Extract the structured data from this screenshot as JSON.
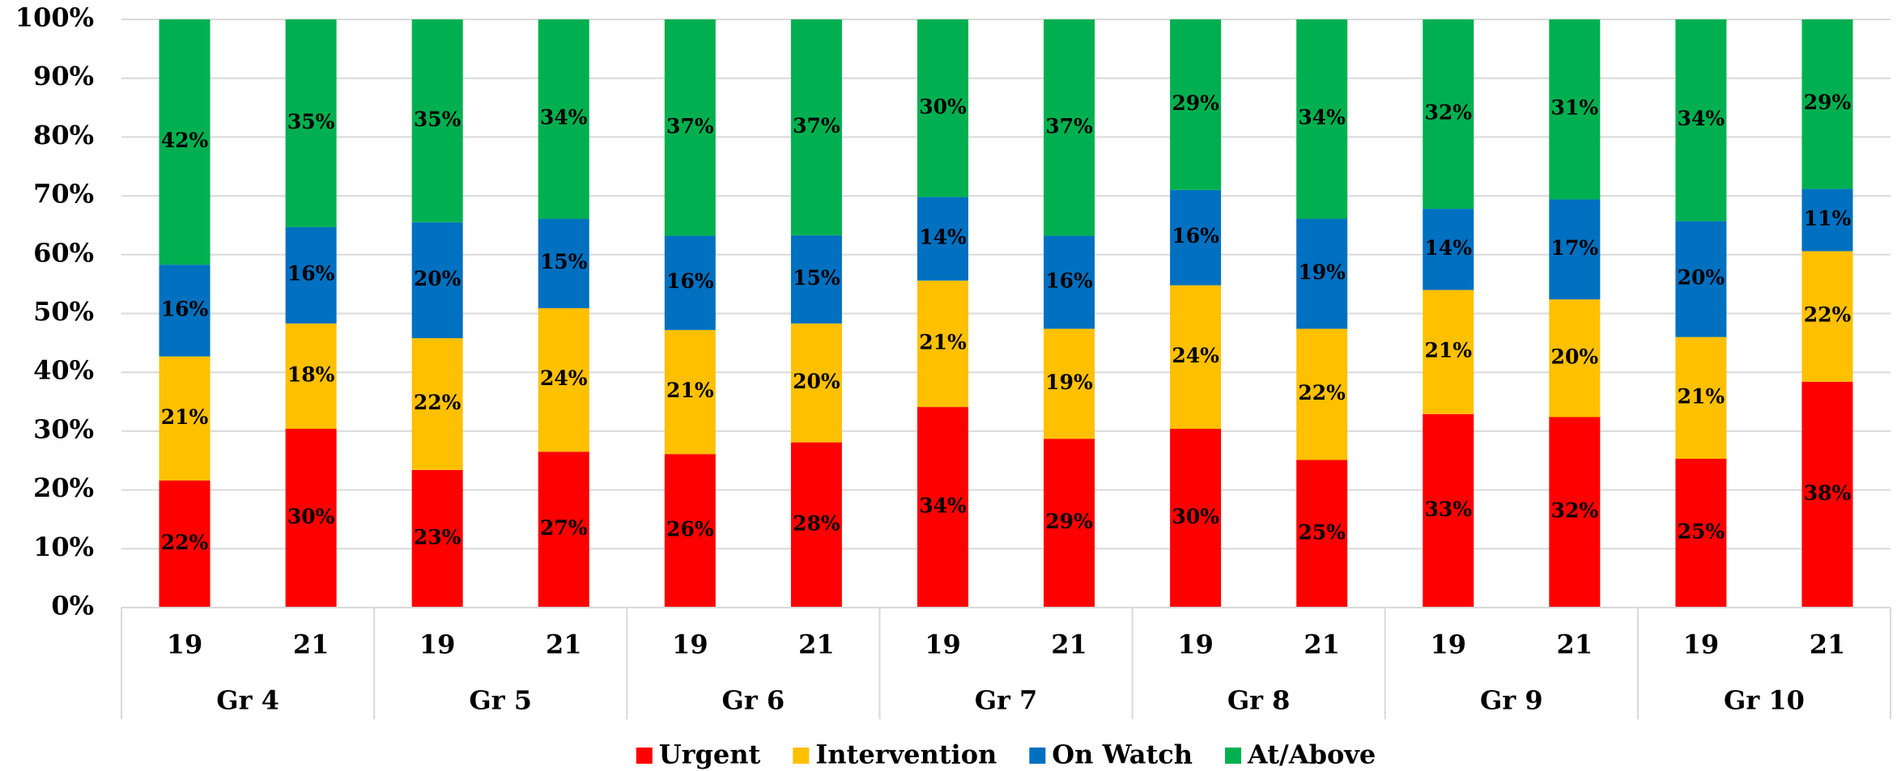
{
  "chart_data": {
    "type": "stacked_bar",
    "categories": [
      "19",
      "21",
      "19",
      "21",
      "19",
      "21",
      "19",
      "21",
      "19",
      "21",
      "19",
      "21",
      "19",
      "21"
    ],
    "groups": [
      "Gr 4",
      "Gr 5",
      "Gr 6",
      "Gr 7",
      "Gr 8",
      "Gr 9",
      "Gr 10"
    ],
    "series": [
      {
        "name": "Urgent",
        "color": "#ff0000",
        "values": [
          21.6,
          30.4,
          23.4,
          26.5,
          26.1,
          28.1,
          34.1,
          28.7,
          30.4,
          25.1,
          32.9,
          32.4,
          25.3,
          38.4
        ],
        "value_labels": [
          "22%",
          "30%",
          "23%",
          "27%",
          "26%",
          "28%",
          "34%",
          "29%",
          "30%",
          "25%",
          "33%",
          "32%",
          "25%",
          "38%"
        ]
      },
      {
        "name": "Intervention",
        "color": "#ffc000",
        "values": [
          21.1,
          17.9,
          22.4,
          24.4,
          21.1,
          20.2,
          21.5,
          18.7,
          24.4,
          22.3,
          21.1,
          20.0,
          20.7,
          22.2
        ],
        "value_labels": [
          "21%",
          "18%",
          "22%",
          "24%",
          "21%",
          "20%",
          "21%",
          "19%",
          "24%",
          "22%",
          "21%",
          "20%",
          "21%",
          "22%"
        ]
      },
      {
        "name": "On Watch",
        "color": "#0070c0",
        "values": [
          15.6,
          16.4,
          19.7,
          15.2,
          16.0,
          15.0,
          14.2,
          15.8,
          16.2,
          18.7,
          13.8,
          17.0,
          19.7,
          10.6
        ],
        "value_labels": [
          "16%",
          "16%",
          "20%",
          "15%",
          "16%",
          "15%",
          "14%",
          "16%",
          "16%",
          "19%",
          "14%",
          "17%",
          "20%",
          "11%"
        ]
      },
      {
        "name": "At/Above",
        "color": "#00b050",
        "values": [
          41.7,
          35.3,
          34.5,
          33.9,
          36.8,
          36.7,
          30.2,
          36.8,
          29.0,
          33.9,
          32.2,
          30.6,
          34.3,
          28.8
        ],
        "value_labels": [
          "42%",
          "35%",
          "35%",
          "34%",
          "37%",
          "37%",
          "30%",
          "37%",
          "29%",
          "34%",
          "32%",
          "31%",
          "34%",
          "29%"
        ]
      }
    ],
    "ylim": [
      0,
      100
    ],
    "yticks": [
      {
        "value": 0,
        "label": "0%"
      },
      {
        "value": 10,
        "label": "10%"
      },
      {
        "value": 20,
        "label": "20%"
      },
      {
        "value": 30,
        "label": "30%"
      },
      {
        "value": 40,
        "label": "40%"
      },
      {
        "value": 50,
        "label": "50%"
      },
      {
        "value": 60,
        "label": "60%"
      },
      {
        "value": 70,
        "label": "70%"
      },
      {
        "value": 80,
        "label": "80%"
      },
      {
        "value": 90,
        "label": "90%"
      },
      {
        "value": 100,
        "label": "100%"
      }
    ],
    "grid": true,
    "legend": "bottom"
  }
}
